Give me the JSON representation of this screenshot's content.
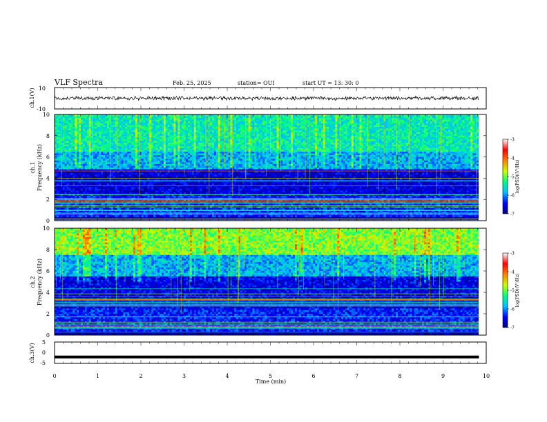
{
  "header": {
    "title": "VLF Spectra",
    "date": "Feb. 25, 2025",
    "station": "station= OUI",
    "start": "start  UT  =   13: 30: 0"
  },
  "colors": {
    "spectrogram_scale": [
      "#000080",
      "#0000ff",
      "#00bfff",
      "#00ff80",
      "#c8ff00",
      "#ff8000",
      "#ff0000",
      "#ffffff"
    ],
    "waveform": "#000000"
  },
  "chart_data": [
    {
      "type": "line",
      "name": "ch1-waveform",
      "ylabel": "ch.1(V)",
      "ylim": [
        -10,
        10
      ],
      "yticks": [
        "10",
        "-10"
      ],
      "xlim": [
        0,
        10
      ],
      "approx_level": 0.0,
      "approx_amplitude": 1.5
    },
    {
      "type": "heatmap",
      "name": "ch1-spectrogram",
      "panel_label": "ch.1",
      "ylabel": "Frequency (kHz)",
      "ylim": [
        0,
        10
      ],
      "yticks": [
        "0",
        "2",
        "4",
        "6",
        "8",
        "10"
      ],
      "xlim": [
        0,
        10
      ],
      "colorbar": {
        "label": "log(PSD)(V²/Hz)",
        "range": [
          -7,
          -3
        ],
        "ticks": [
          "-3",
          "-4",
          "-5",
          "-6",
          "-7"
        ]
      },
      "band_levels": [
        {
          "f_from": 0,
          "f_to": 0.3,
          "level": -6.8
        },
        {
          "f_from": 0.3,
          "f_to": 2.5,
          "level": -6.2
        },
        {
          "f_from": 2.5,
          "f_to": 4.8,
          "level": -6.5
        },
        {
          "f_from": 4.8,
          "f_to": 6.5,
          "level": -5.6
        },
        {
          "f_from": 6.5,
          "f_to": 10,
          "level": -5.2
        }
      ]
    },
    {
      "type": "heatmap",
      "name": "ch2-spectrogram",
      "panel_label": "ch.2",
      "ylabel": "Frequency (kHz)",
      "ylim": [
        0,
        10
      ],
      "yticks": [
        "0",
        "2",
        "4",
        "6",
        "8",
        "10"
      ],
      "xlim": [
        0,
        10
      ],
      "colorbar": {
        "label": "log(PSD)(V²/Hz)",
        "range": [
          -7,
          -3
        ],
        "ticks": [
          "-3",
          "-4",
          "-5",
          "-6",
          "-7"
        ]
      },
      "band_levels": [
        {
          "f_from": 0,
          "f_to": 0.3,
          "level": -6.8
        },
        {
          "f_from": 0.3,
          "f_to": 2.5,
          "level": -6.2
        },
        {
          "f_from": 2.5,
          "f_to": 5.5,
          "level": -6.4
        },
        {
          "f_from": 5.5,
          "f_to": 7.5,
          "level": -5.6
        },
        {
          "f_from": 7.5,
          "f_to": 10,
          "level": -4.6
        }
      ]
    },
    {
      "type": "line",
      "name": "ch3-waveform",
      "ylabel": "ch.3(V)",
      "ylim": [
        -5,
        5
      ],
      "yticks": [
        "5",
        "0",
        "-5"
      ],
      "xlim": [
        0,
        10
      ],
      "approx_level": -2.0
    }
  ],
  "xaxis": {
    "label": "Time (min)",
    "ticks": [
      "0",
      "1",
      "2",
      "3",
      "4",
      "5",
      "6",
      "7",
      "8",
      "9",
      "10"
    ]
  }
}
